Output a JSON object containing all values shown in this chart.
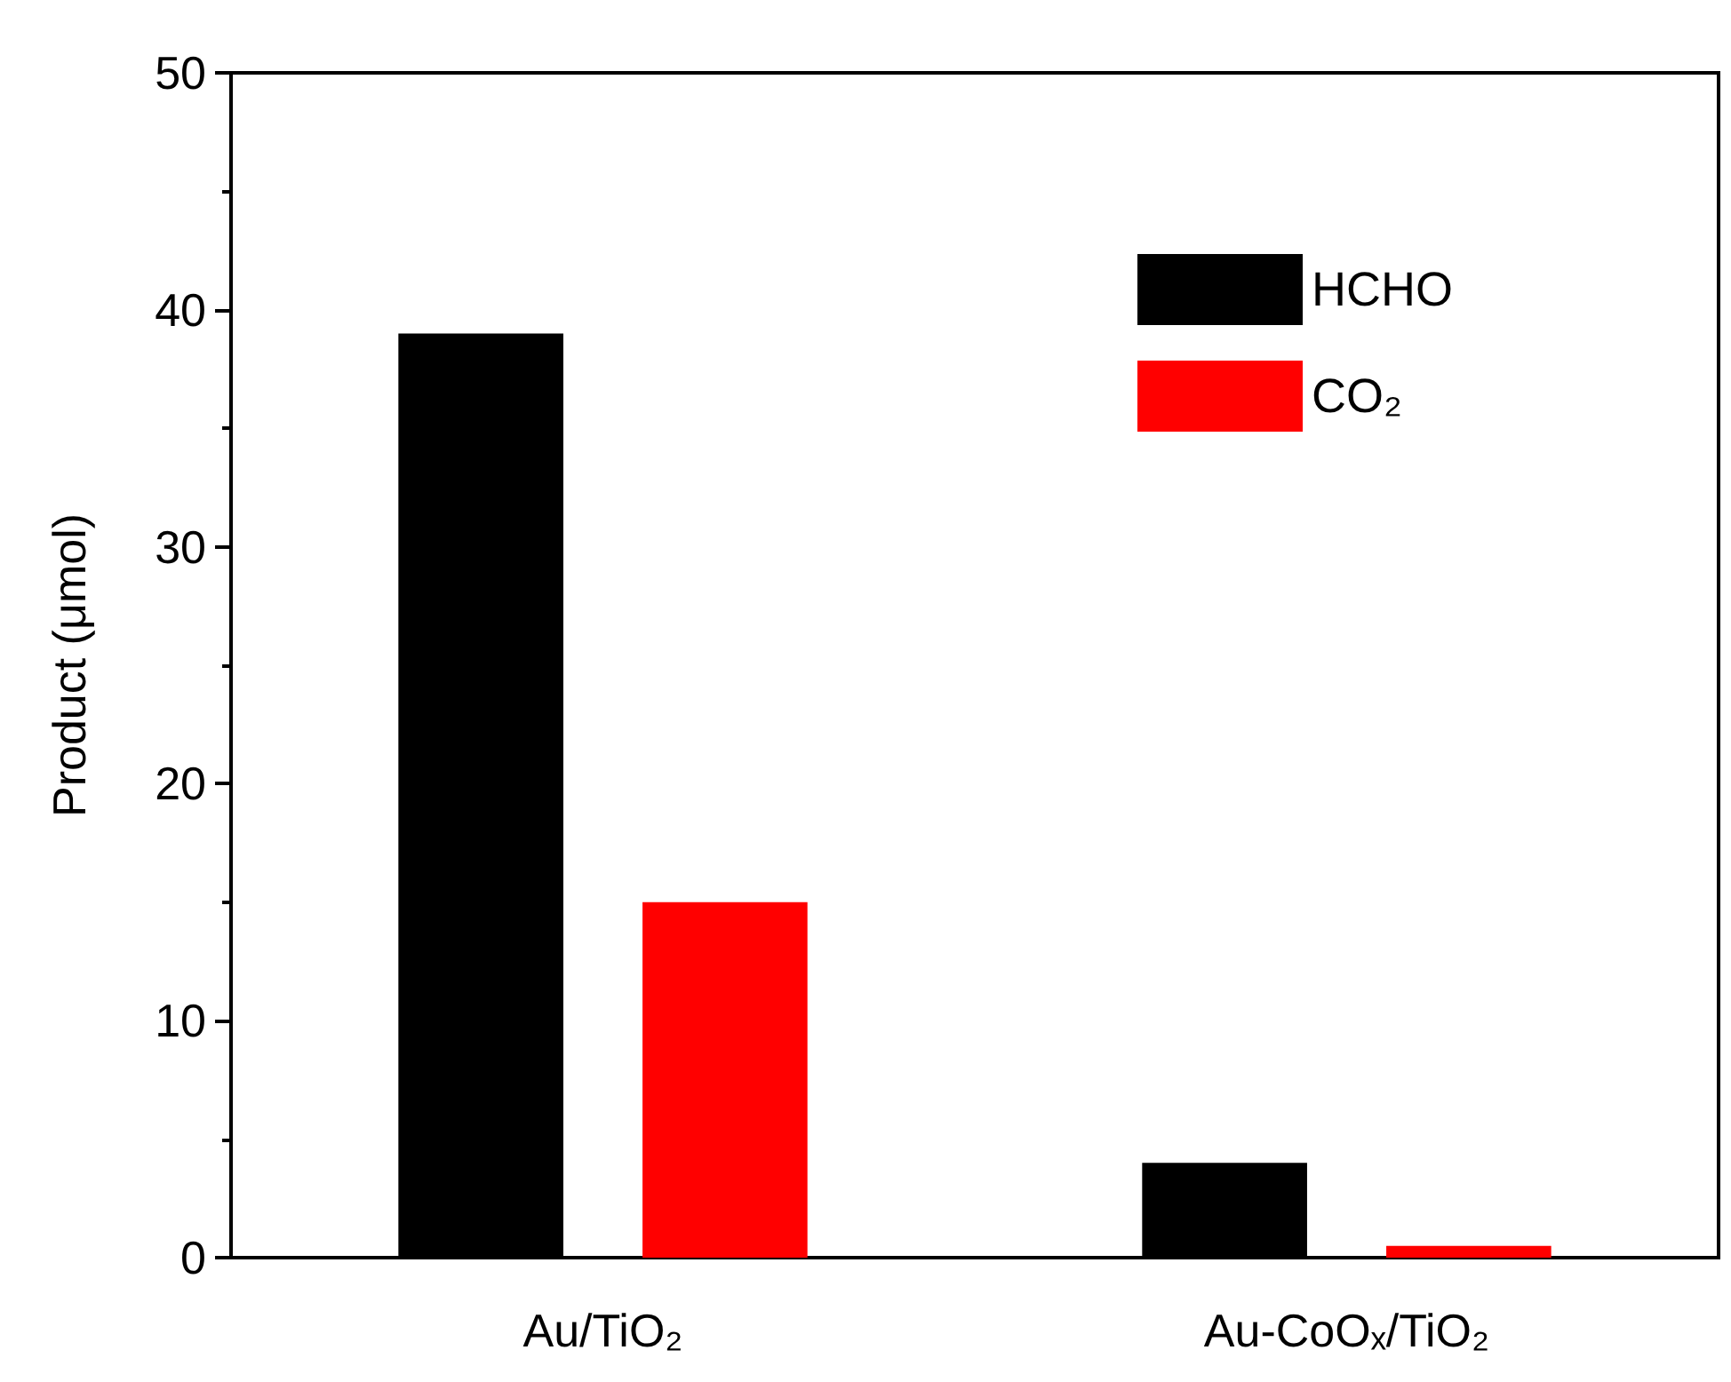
{
  "chart_data": {
    "type": "bar",
    "ylabel": "Product (μmol)",
    "categories": [
      "Au/TiO₂",
      "Au-CoOₓ/TiO₂"
    ],
    "series": [
      {
        "name": "HCHO",
        "color": "#000000",
        "values": [
          39,
          4
        ]
      },
      {
        "name": "CO₂",
        "color": "#ff0000",
        "values": [
          15,
          0.5
        ]
      }
    ],
    "ylim": [
      0,
      50
    ],
    "yticks": [
      0,
      10,
      20,
      30,
      40,
      50
    ],
    "grid": false,
    "legend": "top right"
  }
}
